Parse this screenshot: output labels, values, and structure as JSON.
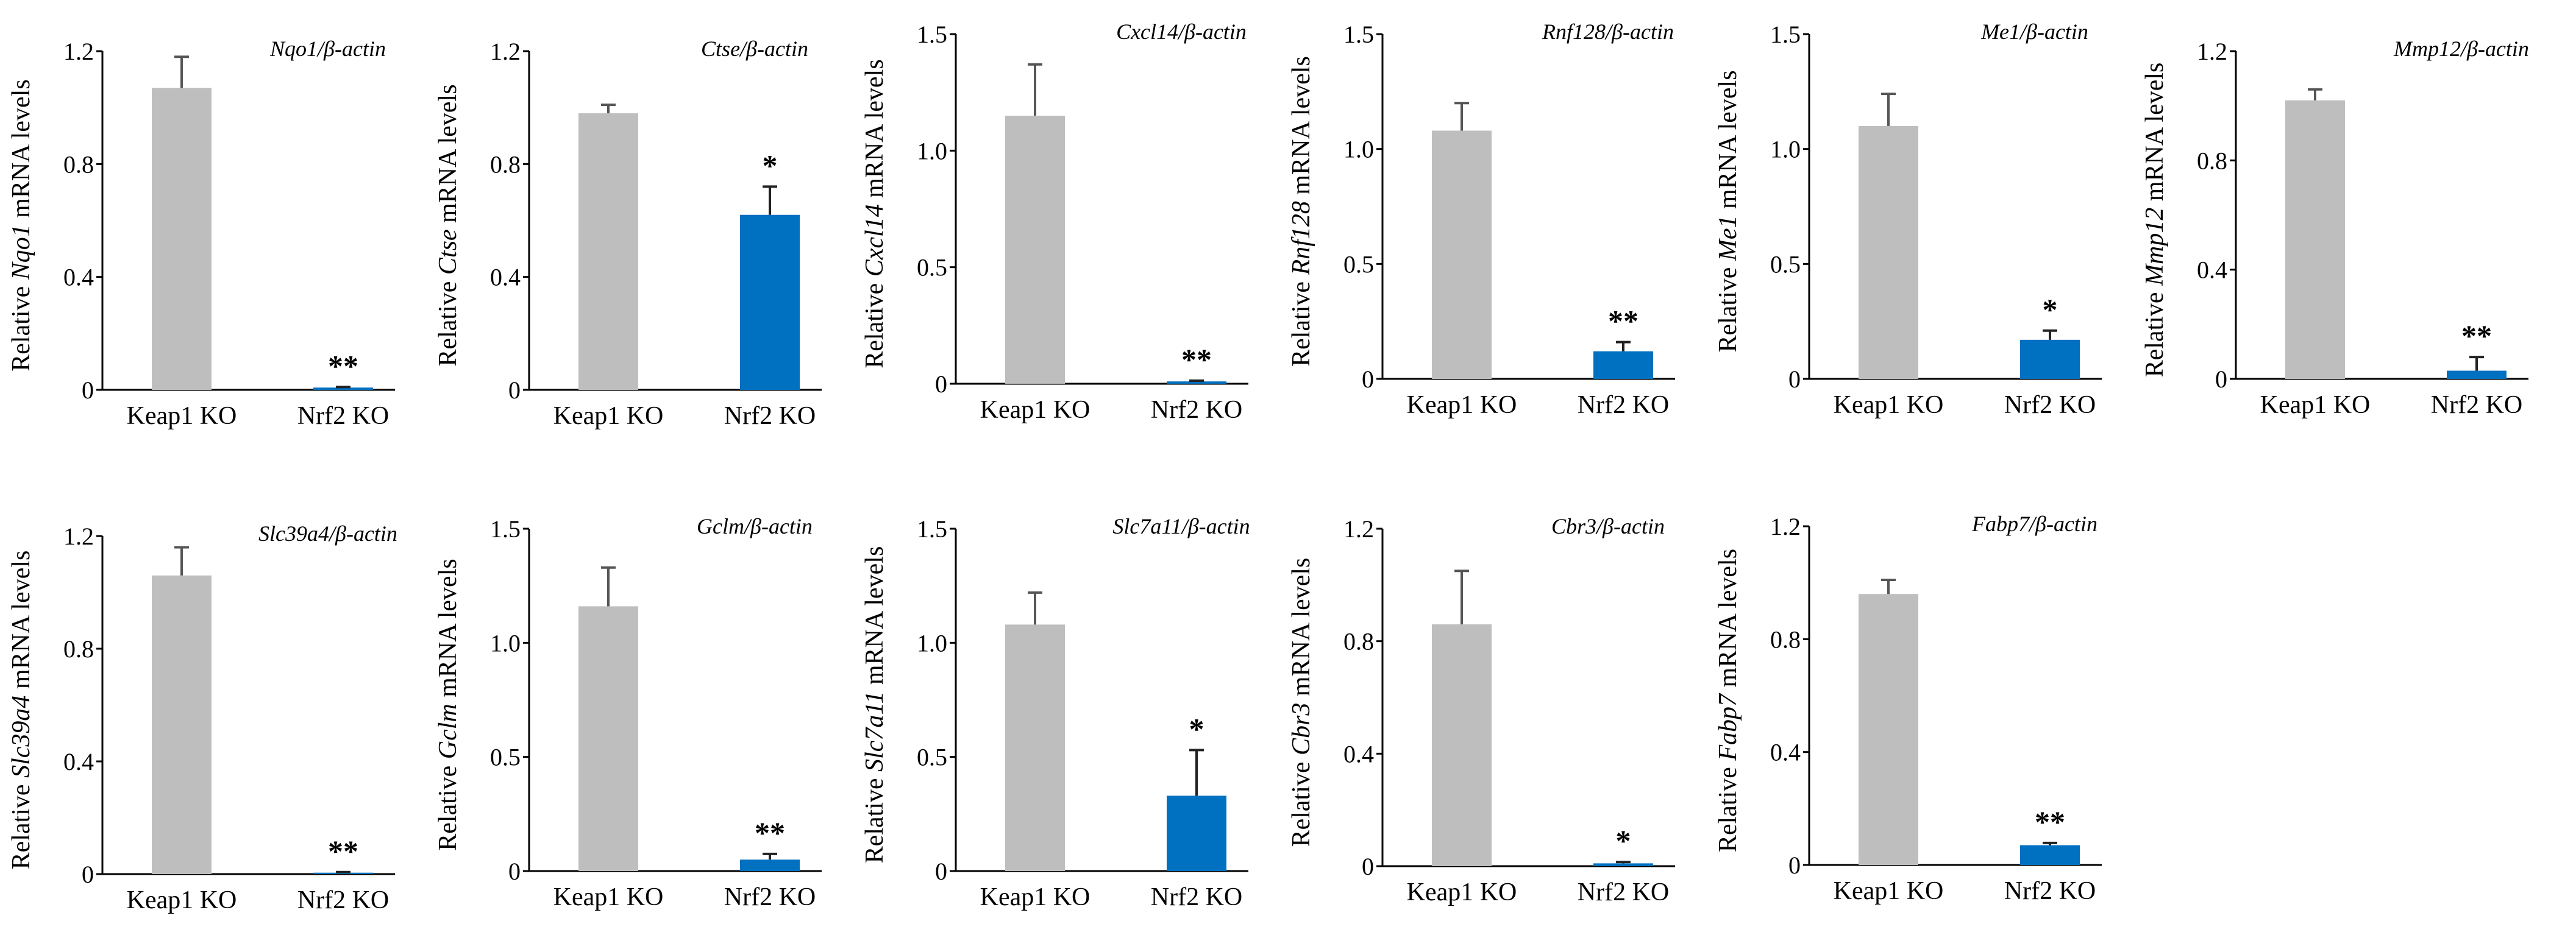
{
  "colors": {
    "keap1": "#BEBEBE",
    "nrf2": "#0070C0",
    "axis": "#000000"
  },
  "chart_data": [
    {
      "type": "bar",
      "title": "Nqo1/β-actin",
      "gene": "Nqo1",
      "ylabel_pre": "Relative ",
      "ylabel_post": " mRNA levels",
      "categories": [
        "Keap1 KO",
        "Nrf2 KO"
      ],
      "values": [
        1.07,
        0.008
      ],
      "errors": [
        0.11,
        0.002
      ],
      "significance": [
        "",
        "**"
      ],
      "ylim": [
        0,
        1.2
      ],
      "ticks": [
        "0",
        "0.4",
        "0.8",
        "1.2"
      ]
    },
    {
      "type": "bar",
      "title": "Ctse/β-actin",
      "gene": "Ctse",
      "ylabel_pre": "Relative ",
      "ylabel_post": " mRNA levels",
      "categories": [
        "Keap1 KO",
        "Nrf2 KO"
      ],
      "values": [
        0.98,
        0.62
      ],
      "errors": [
        0.03,
        0.1
      ],
      "significance": [
        "",
        "*"
      ],
      "ylim": [
        0,
        1.2
      ],
      "ticks": [
        "0",
        "0.4",
        "0.8",
        "1.2"
      ]
    },
    {
      "type": "bar",
      "title": "Cxcl14/β-actin",
      "gene": "Cxcl14",
      "ylabel_pre": "Relative ",
      "ylabel_post": " mRNA levels",
      "categories": [
        "Keap1 KO",
        "Nrf2 KO"
      ],
      "values": [
        1.15,
        0.01
      ],
      "errors": [
        0.22,
        0.003
      ],
      "significance": [
        "",
        "**"
      ],
      "ylim": [
        0,
        1.5
      ],
      "ticks": [
        "0",
        "0.5",
        "1.0",
        "1.5"
      ]
    },
    {
      "type": "bar",
      "title": "Rnf128/β-actin",
      "gene": "Rnf128",
      "ylabel_pre": "Relative ",
      "ylabel_post": " mRNA levels",
      "categories": [
        "Keap1 KO",
        "Nrf2 KO"
      ],
      "values": [
        1.08,
        0.12
      ],
      "errors": [
        0.12,
        0.04
      ],
      "significance": [
        "",
        "**"
      ],
      "ylim": [
        0,
        1.5
      ],
      "ticks": [
        "0",
        "0.5",
        "1.0",
        "1.5"
      ]
    },
    {
      "type": "bar",
      "title": "Me1/β-actin",
      "gene": "Me1",
      "ylabel_pre": "Relative ",
      "ylabel_post": " mRNA levels",
      "categories": [
        "Keap1 KO",
        "Nrf2 KO"
      ],
      "values": [
        1.1,
        0.17
      ],
      "errors": [
        0.14,
        0.04
      ],
      "significance": [
        "",
        "*"
      ],
      "ylim": [
        0,
        1.5
      ],
      "ticks": [
        "0",
        "0.5",
        "1.0",
        "1.5"
      ]
    },
    {
      "type": "bar",
      "title": "Mmp12/β-actin",
      "gene": "Mmp12",
      "ylabel_pre": "Relative ",
      "ylabel_post": " mRNA levels",
      "categories": [
        "Keap1 KO",
        "Nrf2 KO"
      ],
      "values": [
        1.02,
        0.03
      ],
      "errors": [
        0.04,
        0.05
      ],
      "significance": [
        "",
        "**"
      ],
      "ylim": [
        0,
        1.2
      ],
      "ticks": [
        "0",
        "0.4",
        "0.8",
        "1.2"
      ]
    },
    {
      "type": "bar",
      "title": "Slc39a4/β-actin",
      "gene": "Slc39a4",
      "ylabel_pre": "Relative ",
      "ylabel_post": " mRNA levels",
      "categories": [
        "Keap1 KO",
        "Nrf2 KO"
      ],
      "values": [
        1.06,
        0.005
      ],
      "errors": [
        0.1,
        0.002
      ],
      "significance": [
        "",
        "**"
      ],
      "ylim": [
        0,
        1.2
      ],
      "ticks": [
        "0",
        "0.4",
        "0.8",
        "1.2"
      ]
    },
    {
      "type": "bar",
      "title": "Gclm/β-actin",
      "gene": "Gclm",
      "ylabel_pre": "Relative ",
      "ylabel_post": " mRNA levels",
      "categories": [
        "Keap1 KO",
        "Nrf2 KO"
      ],
      "values": [
        1.16,
        0.05
      ],
      "errors": [
        0.17,
        0.025
      ],
      "significance": [
        "",
        "**"
      ],
      "ylim": [
        0,
        1.5
      ],
      "ticks": [
        "0",
        "0.5",
        "1.0",
        "1.5"
      ]
    },
    {
      "type": "bar",
      "title": "Slc7a11/β-actin",
      "gene": "Slc7a11",
      "ylabel_pre": "Relative ",
      "ylabel_post": " mRNA levels",
      "categories": [
        "Keap1 KO",
        "Nrf2 KO"
      ],
      "values": [
        1.08,
        0.33
      ],
      "errors": [
        0.14,
        0.2
      ],
      "significance": [
        "",
        "*"
      ],
      "ylim": [
        0,
        1.5
      ],
      "ticks": [
        "0",
        "0.5",
        "1.0",
        "1.5"
      ]
    },
    {
      "type": "bar",
      "title": "Cbr3/β-actin",
      "gene": "Cbr3",
      "ylabel_pre": "Relative ",
      "ylabel_post": " mRNA levels",
      "categories": [
        "Keap1 KO",
        "Nrf2 KO"
      ],
      "values": [
        0.86,
        0.01
      ],
      "errors": [
        0.19,
        0.005
      ],
      "significance": [
        "",
        "*"
      ],
      "ylim": [
        0,
        1.2
      ],
      "ticks": [
        "0",
        "0.4",
        "0.8",
        "1.2"
      ]
    },
    {
      "type": "bar",
      "title": "Fabp7/β-actin",
      "gene": "Fabp7",
      "ylabel_pre": "Relative ",
      "ylabel_post": " mRNA levels",
      "categories": [
        "Keap1 KO",
        "Nrf2 KO"
      ],
      "values": [
        0.96,
        0.07
      ],
      "errors": [
        0.05,
        0.008
      ],
      "significance": [
        "",
        "**"
      ],
      "ylim": [
        0,
        1.2
      ],
      "ticks": [
        "0",
        "0.4",
        "0.8",
        "1.2"
      ]
    }
  ]
}
